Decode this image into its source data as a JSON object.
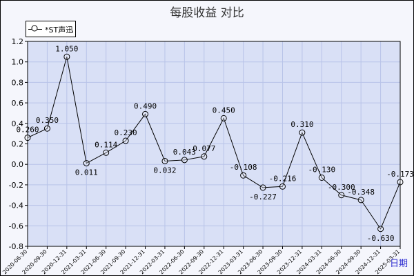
{
  "chart_data": {
    "type": "line",
    "title": "每股收益  对比",
    "xlabel": "日期",
    "ylabel": "",
    "ylim": [
      -0.8,
      1.2
    ],
    "yticks": [
      "1.2",
      "1.0",
      "0.8",
      "0.6",
      "0.4",
      "0.2",
      "0.0",
      "-0.2",
      "-0.4",
      "-0.6",
      "-0.8"
    ],
    "ytick_values": [
      1.2,
      1.0,
      0.8,
      0.6,
      0.4,
      0.2,
      0.0,
      -0.2,
      -0.4,
      -0.6,
      -0.8
    ],
    "grid": true,
    "legend_position": "top-left",
    "plot_bg": "#d9e0f6",
    "grid_color": "#b8c3e8",
    "line_color": "#000000",
    "categories": [
      "2020-06-30",
      "2020-09-30",
      "2020-12-31",
      "2021-03-31",
      "2021-06-30",
      "2021-09-30",
      "2021-12-31",
      "2022-03-31",
      "2022-06-30",
      "2022-09-30",
      "2022-12-31",
      "2023-03-31",
      "2023-06-30",
      "2023-09-30",
      "2023-12-31",
      "2024-03-31",
      "2024-06-30",
      "2024-09-30",
      "2024-12-31",
      "2025-03-31"
    ],
    "series": [
      {
        "name": "*ST声迅",
        "values": [
          0.26,
          0.35,
          1.05,
          0.011,
          0.114,
          0.23,
          0.49,
          0.032,
          0.043,
          0.077,
          0.45,
          -0.108,
          -0.227,
          -0.216,
          0.31,
          -0.13,
          -0.3,
          -0.348,
          -0.63,
          -0.173
        ],
        "labels": [
          "0.260",
          "0.350",
          "1.050",
          "0.011",
          "0.114",
          "0.230",
          "0.490",
          "0.032",
          "0.043",
          "0.077",
          "0.450",
          "-0.108",
          "-0.227",
          "-0.216",
          "0.310",
          "-0.130",
          "-0.300",
          "-0.348",
          "-0.630",
          "-0.173"
        ]
      }
    ]
  }
}
